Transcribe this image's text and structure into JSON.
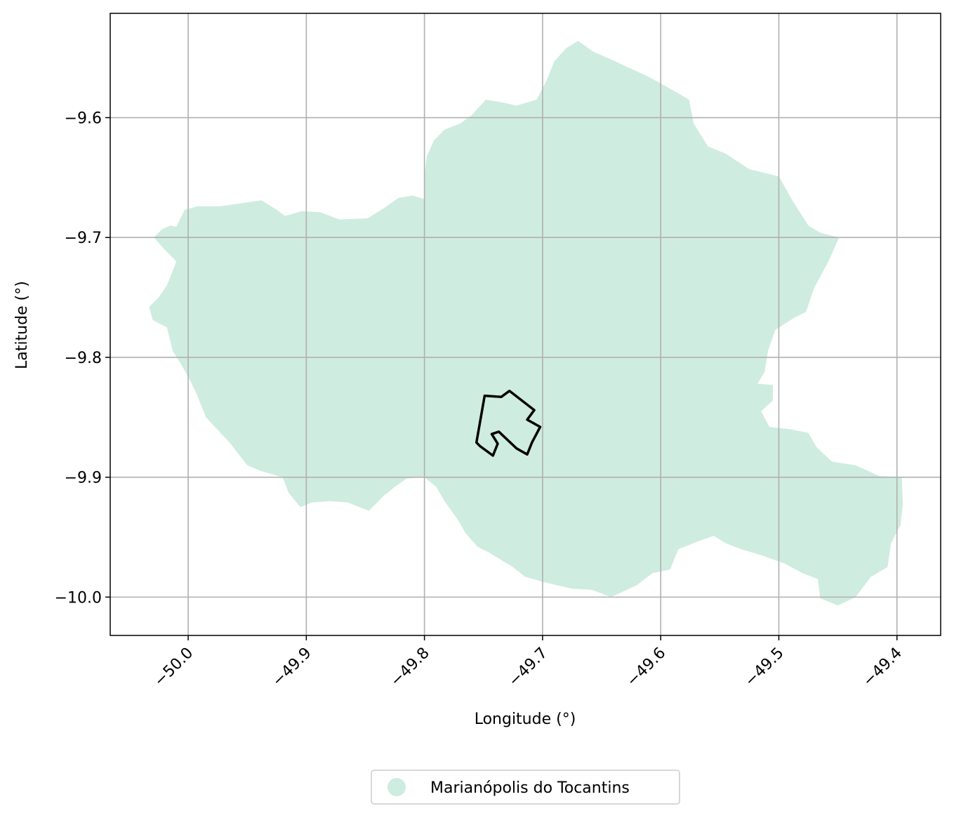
{
  "chart_data": {
    "type": "map",
    "xlabel": "Longitude (°)",
    "ylabel": "Latitude (°)",
    "xlim": [
      -50.066,
      -49.363
    ],
    "ylim": [
      -10.032,
      -9.513
    ],
    "xticks": [
      {
        "value": -50.0,
        "label": "−50.0"
      },
      {
        "value": -49.9,
        "label": "−49.9"
      },
      {
        "value": -49.8,
        "label": "−49.8"
      },
      {
        "value": -49.7,
        "label": "−49.7"
      },
      {
        "value": -49.6,
        "label": "−49.6"
      },
      {
        "value": -49.5,
        "label": "−49.5"
      },
      {
        "value": -49.4,
        "label": "−49.4"
      }
    ],
    "yticks": [
      {
        "value": -9.6,
        "label": "−9.6"
      },
      {
        "value": -9.7,
        "label": "−9.7"
      },
      {
        "value": -9.8,
        "label": "−9.8"
      },
      {
        "value": -9.9,
        "label": "−9.9"
      },
      {
        "value": -10.0,
        "label": "−10.0"
      }
    ],
    "grid": true,
    "legend": {
      "placement": "bottom-center",
      "label": "Marianópolis do Tocantins",
      "color": "#cfece0"
    },
    "region": {
      "name": "Marianópolis do Tocantins",
      "color": "#cfece0",
      "boundary": [
        [
          -50.029,
          -9.7
        ],
        [
          -50.022,
          -9.693
        ],
        [
          -50.015,
          -9.69
        ],
        [
          -50.01,
          -9.691
        ],
        [
          -50.003,
          -9.677
        ],
        [
          -49.992,
          -9.674
        ],
        [
          -49.973,
          -9.674
        ],
        [
          -49.952,
          -9.671
        ],
        [
          -49.938,
          -9.669
        ],
        [
          -49.925,
          -9.677
        ],
        [
          -49.918,
          -9.682
        ],
        [
          -49.904,
          -9.678
        ],
        [
          -49.888,
          -9.679
        ],
        [
          -49.872,
          -9.685
        ],
        [
          -49.848,
          -9.684
        ],
        [
          -49.835,
          -9.676
        ],
        [
          -49.822,
          -9.667
        ],
        [
          -49.81,
          -9.665
        ],
        [
          -49.8,
          -9.668
        ],
        [
          -49.8,
          -9.648
        ],
        [
          -49.798,
          -9.632
        ],
        [
          -49.792,
          -9.619
        ],
        [
          -49.783,
          -9.61
        ],
        [
          -49.77,
          -9.605
        ],
        [
          -49.76,
          -9.598
        ],
        [
          -49.748,
          -9.585
        ],
        [
          -49.736,
          -9.587
        ],
        [
          -49.722,
          -9.59
        ],
        [
          -49.705,
          -9.585
        ],
        [
          -49.697,
          -9.57
        ],
        [
          -49.69,
          -9.553
        ],
        [
          -49.68,
          -9.542
        ],
        [
          -49.67,
          -9.536
        ],
        [
          -49.657,
          -9.545
        ],
        [
          -49.643,
          -9.551
        ],
        [
          -49.63,
          -9.557
        ],
        [
          -49.61,
          -9.566
        ],
        [
          -49.59,
          -9.577
        ],
        [
          -49.576,
          -9.585
        ],
        [
          -49.572,
          -9.605
        ],
        [
          -49.56,
          -9.624
        ],
        [
          -49.545,
          -9.63
        ],
        [
          -49.525,
          -9.643
        ],
        [
          -49.5,
          -9.649
        ],
        [
          -49.488,
          -9.67
        ],
        [
          -49.475,
          -9.69
        ],
        [
          -49.465,
          -9.696
        ],
        [
          -49.449,
          -9.7
        ],
        [
          -49.458,
          -9.72
        ],
        [
          -49.47,
          -9.742
        ],
        [
          -49.477,
          -9.762
        ],
        [
          -49.487,
          -9.767
        ],
        [
          -49.503,
          -9.777
        ],
        [
          -49.509,
          -9.794
        ],
        [
          -49.512,
          -9.812
        ],
        [
          -49.518,
          -9.822
        ],
        [
          -49.505,
          -9.823
        ],
        [
          -49.505,
          -9.836
        ],
        [
          -49.515,
          -9.845
        ],
        [
          -49.508,
          -9.858
        ],
        [
          -49.49,
          -9.86
        ],
        [
          -49.475,
          -9.863
        ],
        [
          -49.468,
          -9.875
        ],
        [
          -49.455,
          -9.887
        ],
        [
          -49.435,
          -9.89
        ],
        [
          -49.415,
          -9.899
        ],
        [
          -49.396,
          -9.9
        ],
        [
          -49.395,
          -9.922
        ],
        [
          -49.397,
          -9.94
        ],
        [
          -49.405,
          -9.955
        ],
        [
          -49.408,
          -9.975
        ],
        [
          -49.422,
          -9.983
        ],
        [
          -49.435,
          -10.0
        ],
        [
          -49.45,
          -10.007
        ],
        [
          -49.465,
          -10.001
        ],
        [
          -49.467,
          -9.985
        ],
        [
          -49.48,
          -9.98
        ],
        [
          -49.495,
          -9.972
        ],
        [
          -49.515,
          -9.965
        ],
        [
          -49.532,
          -9.96
        ],
        [
          -49.545,
          -9.955
        ],
        [
          -49.555,
          -9.949
        ],
        [
          -49.567,
          -9.953
        ],
        [
          -49.585,
          -9.96
        ],
        [
          -49.592,
          -9.977
        ],
        [
          -49.607,
          -9.98
        ],
        [
          -49.62,
          -9.99
        ],
        [
          -49.642,
          -10.0
        ],
        [
          -49.658,
          -9.994
        ],
        [
          -49.675,
          -9.993
        ],
        [
          -49.697,
          -9.988
        ],
        [
          -49.715,
          -9.983
        ],
        [
          -49.725,
          -9.975
        ],
        [
          -49.745,
          -9.963
        ],
        [
          -49.755,
          -9.958
        ],
        [
          -49.765,
          -9.947
        ],
        [
          -49.772,
          -9.935
        ],
        [
          -49.783,
          -9.92
        ],
        [
          -49.79,
          -9.908
        ],
        [
          -49.8,
          -9.9
        ],
        [
          -49.815,
          -9.901
        ],
        [
          -49.825,
          -9.908
        ],
        [
          -49.835,
          -9.916
        ],
        [
          -49.847,
          -9.928
        ],
        [
          -49.865,
          -9.921
        ],
        [
          -49.88,
          -9.92
        ],
        [
          -49.895,
          -9.921
        ],
        [
          -49.905,
          -9.925
        ],
        [
          -49.915,
          -9.913
        ],
        [
          -49.92,
          -9.9
        ],
        [
          -49.938,
          -9.895
        ],
        [
          -49.95,
          -9.89
        ],
        [
          -49.965,
          -9.871
        ],
        [
          -49.985,
          -9.85
        ],
        [
          -49.993,
          -9.83
        ],
        [
          -49.999,
          -9.818
        ],
        [
          -50.007,
          -9.804
        ],
        [
          -50.013,
          -9.795
        ],
        [
          -50.018,
          -9.775
        ],
        [
          -50.03,
          -9.769
        ],
        [
          -50.033,
          -9.758
        ],
        [
          -50.025,
          -9.75
        ],
        [
          -50.018,
          -9.74
        ],
        [
          -50.01,
          -9.72
        ],
        [
          -50.02,
          -9.71
        ]
      ]
    },
    "outline": {
      "color": "#000000",
      "boundary": [
        [
          -49.749,
          -9.832
        ],
        [
          -49.735,
          -9.833
        ],
        [
          -49.728,
          -9.828
        ],
        [
          -49.707,
          -9.844
        ],
        [
          -49.713,
          -9.852
        ],
        [
          -49.702,
          -9.858
        ],
        [
          -49.709,
          -9.871
        ],
        [
          -49.713,
          -9.881
        ],
        [
          -49.722,
          -9.876
        ],
        [
          -49.737,
          -9.862
        ],
        [
          -49.743,
          -9.864
        ],
        [
          -49.738,
          -9.872
        ],
        [
          -49.742,
          -9.882
        ],
        [
          -49.753,
          -9.874
        ],
        [
          -49.756,
          -9.871
        ]
      ]
    }
  }
}
